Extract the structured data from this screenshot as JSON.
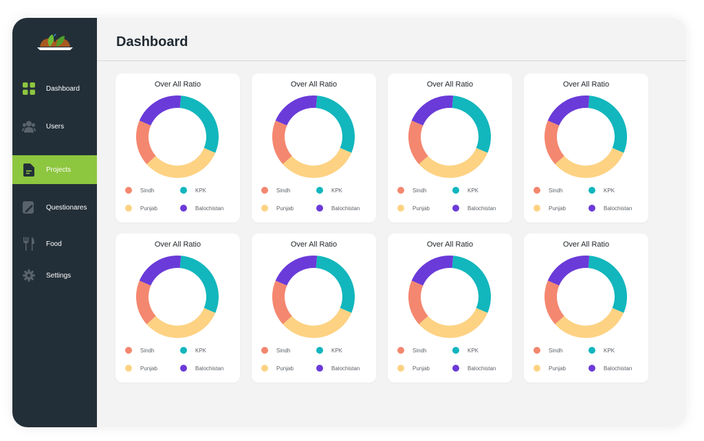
{
  "colors": {
    "sidebar_bg": "#232f38",
    "active_item": "#8dc63f",
    "sindh": "#f4876f",
    "kpk": "#12b6bd",
    "punjab": "#fdd283",
    "balochistan": "#6a3bd8"
  },
  "sidebar": {
    "items": [
      {
        "label": "Dashboard",
        "icon": "grid-icon"
      },
      {
        "label": "Users",
        "icon": "users-icon"
      },
      {
        "label": "Projects",
        "icon": "document-icon",
        "active": true
      },
      {
        "label": "Questionares",
        "icon": "edit-icon"
      },
      {
        "label": "Food",
        "icon": "fork-knife-icon"
      },
      {
        "label": "Settings",
        "icon": "gear-icon"
      }
    ]
  },
  "header": {
    "title": "Dashboard"
  },
  "cards": [
    {
      "title": "Over All Ratio"
    },
    {
      "title": "Over All Ratio"
    },
    {
      "title": "Over All Ratio"
    },
    {
      "title": "Over All Ratio"
    },
    {
      "title": "Over All Ratio"
    },
    {
      "title": "Over All Ratio"
    },
    {
      "title": "Over All Ratio"
    },
    {
      "title": "Over All Ratio"
    }
  ],
  "legend": [
    "Sindh",
    "KPK",
    "Punjab",
    "Balochistan"
  ],
  "chart_data": {
    "type": "pie",
    "categories": [
      "Sindh",
      "KPK",
      "Punjab",
      "Balochistan"
    ],
    "values": [
      18,
      30,
      32,
      20
    ],
    "donut": true
  }
}
